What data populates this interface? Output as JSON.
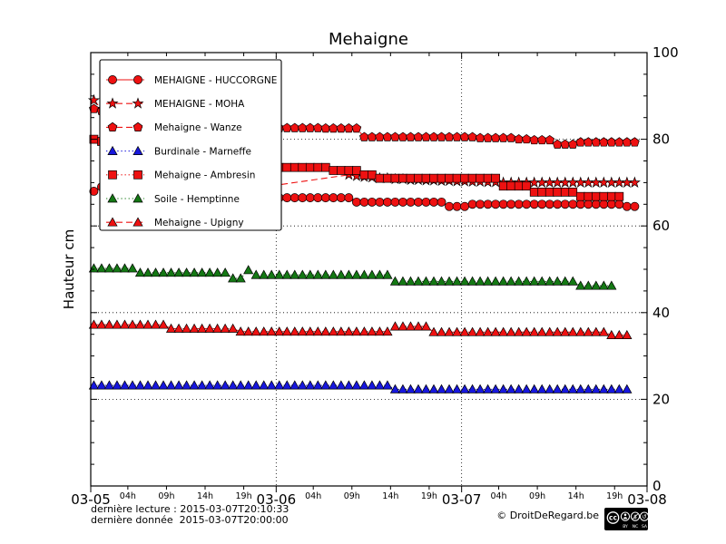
{
  "figure": {
    "title": "Mehaigne",
    "ylabel": "Hauteur cm",
    "footer": {
      "line1": "dernière lecture : 2015-03-07T20:10:33",
      "line2": "dernière donnée  2015-03-07T20:00:00",
      "copyright": "© DroitDeRegard.be",
      "license_badge": {
        "name": "CC BY-NC-SA",
        "cc_text": "cc",
        "labels": [
          "BY",
          "NC",
          "SA"
        ]
      }
    }
  },
  "chart_data": {
    "type": "line",
    "title": "Mehaigne",
    "xlabel": "",
    "ylabel": "Hauteur cm",
    "ylim": [
      0,
      100
    ],
    "y_ticks": [
      0,
      20,
      40,
      60,
      80,
      100
    ],
    "y_minor_step": 5,
    "grid": {
      "horizontal_at": [
        20,
        40,
        60,
        80
      ],
      "vertical_at_days": [
        1,
        2
      ],
      "style": "dotted"
    },
    "x_axis": {
      "day_labels": [
        "03-05",
        "03-06",
        "03-07",
        "03-08"
      ],
      "hour_tick_labels": [
        "04h",
        "09h",
        "14h",
        "19h"
      ],
      "hour_tick_offsets": [
        4.8,
        9.8,
        14.8,
        19.8
      ],
      "hours_per_day": 24,
      "total_hours": 72,
      "values_note": "series values are hourly, hour 0 = 03-05 00:00, null = no data"
    },
    "legend_position": "upper-left",
    "series": [
      {
        "name": "MEHAIGNE - HUCCORGNE",
        "color": "#ee1111",
        "marker": "circle",
        "line": "solid",
        "values": [
          68,
          69,
          70,
          70,
          69.8,
          69.6,
          69.4,
          69.2,
          69,
          68.8,
          68.6,
          68.4,
          68.2,
          68,
          67.8,
          67.6,
          67.4,
          67.2,
          67,
          66.9,
          66.8,
          66.7,
          66.6,
          66.5,
          66.5,
          66.5,
          66.5,
          66.5,
          66.5,
          66.5,
          66.5,
          66.5,
          66.5,
          66.5,
          65.5,
          65.5,
          65.5,
          65.5,
          65.5,
          65.5,
          65.5,
          65.5,
          65.5,
          65.5,
          65.5,
          65.5,
          64.5,
          64.5,
          64.5,
          65,
          65,
          65,
          65,
          65,
          65,
          65,
          65,
          65,
          65,
          65,
          65,
          65,
          65,
          65,
          65,
          65,
          65,
          65,
          65,
          64.5,
          64.5
        ]
      },
      {
        "name": "MEHAIGNE - MOHA",
        "color": "#ee1111",
        "marker": "star",
        "line": "dashed",
        "values": [
          89,
          87,
          85,
          83,
          81,
          79,
          77,
          75.5,
          74,
          73,
          72,
          71.5,
          71,
          70.5,
          70.2,
          70,
          69.8,
          69.5,
          69.2,
          69,
          68.8,
          68.9,
          69,
          null,
          null,
          null,
          null,
          null,
          null,
          null,
          null,
          null,
          null,
          71.8,
          71.5,
          71.3,
          71.2,
          71,
          71,
          70.8,
          70.8,
          70.6,
          70.6,
          70.5,
          70.5,
          70.4,
          70.4,
          70.3,
          70.3,
          70.2,
          70.2,
          70.1,
          70.1,
          70,
          70,
          70,
          70,
          70,
          70,
          70,
          70,
          70,
          70,
          70,
          70,
          70,
          70,
          70,
          70,
          70,
          70
        ]
      },
      {
        "name": "Mehaigne - Wanze",
        "color": "#ee1111",
        "marker": "pentagon",
        "line": "dashed",
        "values": [
          87,
          86.5,
          86,
          85.8,
          85.5,
          85.2,
          85,
          84.8,
          84.5,
          84.3,
          84,
          83.8,
          83.6,
          83.4,
          83.3,
          83.2,
          83.1,
          83,
          83,
          82.9,
          82.8,
          82.8,
          82.7,
          82.6,
          82.6,
          82.6,
          82.6,
          82.6,
          82.6,
          82.6,
          82.5,
          82.5,
          82.5,
          82.5,
          82.5,
          80.5,
          80.5,
          80.5,
          80.5,
          80.5,
          80.5,
          80.5,
          80.5,
          80.5,
          80.5,
          80.5,
          80.5,
          80.5,
          80.5,
          80.5,
          80.3,
          80.3,
          80.3,
          80.3,
          80.3,
          80,
          80,
          79.8,
          79.8,
          79.8,
          78.8,
          78.8,
          78.8,
          79.3,
          79.3,
          79.3,
          79.3,
          79.3,
          79.3,
          79.3,
          79.3
        ]
      },
      {
        "name": "Burdinale - Marneffe",
        "color": "#1717dd",
        "marker": "triangle",
        "line": "dotted",
        "values": [
          23.2,
          23.2,
          23.2,
          23.2,
          23.2,
          23.2,
          23.2,
          23.2,
          23.2,
          23.2,
          23.2,
          23.2,
          23.2,
          23.2,
          23.2,
          23.2,
          23.2,
          23.2,
          23.2,
          23.2,
          23.2,
          23.2,
          23.2,
          23.2,
          23.2,
          23.2,
          23.2,
          23.2,
          23.2,
          23.2,
          23.2,
          23.2,
          23.2,
          23.2,
          23.2,
          23.2,
          23.2,
          23.2,
          23.2,
          22.3,
          22.3,
          22.3,
          22.3,
          22.3,
          22.3,
          22.3,
          22.3,
          22.3,
          22.3,
          22.3,
          22.3,
          22.3,
          22.3,
          22.3,
          22.3,
          22.3,
          22.3,
          22.3,
          22.3,
          22.3,
          22.3,
          22.3,
          22.3,
          22.3,
          22.3,
          22.3,
          22.3,
          22.3,
          22.3,
          22.3,
          null
        ]
      },
      {
        "name": "Mehaigne - Ambresin",
        "color": "#ee1111",
        "marker": "square",
        "line": "dotted",
        "values": [
          80,
          79.5,
          79,
          78.5,
          78,
          77.5,
          77.2,
          76.8,
          76.5,
          76.2,
          76,
          75.8,
          75.5,
          75.3,
          75.1,
          75,
          74.8,
          74.6,
          74.5,
          74.3,
          74.2,
          74,
          73.8,
          73.6,
          73.5,
          73.5,
          73.5,
          73.5,
          73.5,
          73.5,
          73.5,
          72.8,
          72.8,
          72.8,
          72.8,
          71.8,
          71.8,
          71,
          71,
          71,
          71,
          71,
          71,
          71,
          71,
          71,
          71,
          71,
          71,
          71,
          71,
          71,
          71,
          69.2,
          69.2,
          69.2,
          69.2,
          67.8,
          67.8,
          67.8,
          67.8,
          67.8,
          67.8,
          66.8,
          66.8,
          66.8,
          66.8,
          66.8,
          66.8,
          null,
          null
        ]
      },
      {
        "name": "Soile - Hemptinne",
        "color": "#147814",
        "marker": "triangle",
        "line": "dotted",
        "values": [
          50.2,
          50.2,
          50.2,
          50.2,
          50.2,
          50.2,
          49.2,
          49.2,
          49.2,
          49.2,
          49.2,
          49.2,
          49.2,
          49.2,
          49.2,
          49.2,
          49.2,
          49.2,
          47.9,
          47.9,
          49.8,
          48.7,
          48.7,
          48.7,
          48.7,
          48.7,
          48.7,
          48.7,
          48.7,
          48.7,
          48.7,
          48.7,
          48.7,
          48.7,
          48.7,
          48.7,
          48.7,
          48.7,
          48.7,
          47.2,
          47.2,
          47.2,
          47.2,
          47.2,
          47.2,
          47.2,
          47.2,
          47.2,
          47.2,
          47.2,
          47.2,
          47.2,
          47.2,
          47.2,
          47.2,
          47.2,
          47.2,
          47.2,
          47.2,
          47.2,
          47.2,
          47.2,
          47.2,
          46.2,
          46.2,
          46.2,
          46.2,
          46.2,
          null,
          null,
          null
        ]
      },
      {
        "name": "Mehaigne - Upigny",
        "color": "#ee1111",
        "marker": "triangle",
        "line": "dashed",
        "values": [
          37.2,
          37.2,
          37.2,
          37.2,
          37.2,
          37.2,
          37.2,
          37.2,
          37.2,
          37.2,
          36.3,
          36.3,
          36.3,
          36.3,
          36.3,
          36.3,
          36.3,
          36.3,
          36.3,
          35.6,
          35.6,
          35.6,
          35.6,
          35.6,
          35.6,
          35.6,
          35.6,
          35.6,
          35.6,
          35.6,
          35.6,
          35.6,
          35.6,
          35.6,
          35.6,
          35.6,
          35.6,
          35.6,
          35.6,
          36.8,
          36.8,
          36.8,
          36.8,
          36.8,
          35.5,
          35.5,
          35.5,
          35.5,
          35.5,
          35.5,
          35.5,
          35.5,
          35.5,
          35.5,
          35.5,
          35.5,
          35.5,
          35.5,
          35.5,
          35.5,
          35.5,
          35.5,
          35.5,
          35.5,
          35.5,
          35.5,
          35.5,
          34.8,
          34.8,
          34.8,
          null
        ]
      }
    ]
  }
}
